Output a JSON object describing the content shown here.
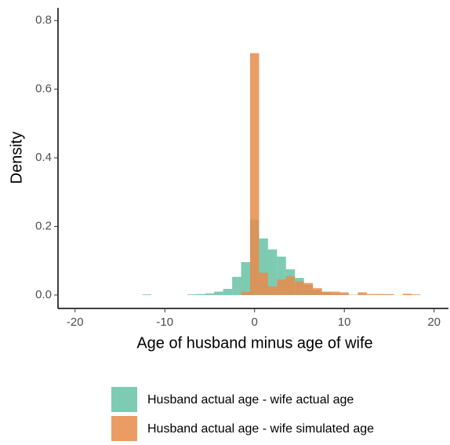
{
  "chart_data": {
    "type": "histogram",
    "xlabel": "Age of husband minus age of wife",
    "ylabel": "Density",
    "bins": [
      -12.5,
      -11.5,
      -10.5,
      -9.5,
      -8.5,
      -7.5,
      -6.5,
      -5.5,
      -4.5,
      -3.5,
      -2.5,
      -1.5,
      -0.5,
      0.5,
      1.5,
      2.5,
      3.5,
      4.5,
      5.5,
      6.5,
      7.5,
      8.5,
      9.5,
      10.5,
      11.5,
      12.5,
      13.5,
      14.5,
      15.5,
      16.5,
      17.5,
      18.5
    ],
    "series": [
      {
        "name": "Husband actual age - wife actual age",
        "color": "#66c2a5",
        "values": [
          0.002,
          0,
          0,
          0,
          0,
          0.002,
          0.003,
          0.005,
          0.01,
          0.018,
          0.053,
          0.096,
          0.22,
          0.165,
          0.133,
          0.112,
          0.075,
          0.05,
          0.03,
          0.015,
          0.008,
          0.004,
          0.002,
          0.001,
          0.001,
          0,
          0,
          0,
          0,
          0,
          0
        ]
      },
      {
        "name": "Husband actual age - wife simulated age",
        "color": "#e78b4a",
        "values": [
          0,
          0,
          0,
          0,
          0,
          0,
          0,
          0,
          0,
          0,
          0,
          0.01,
          0.705,
          0.065,
          0.025,
          0.045,
          0.055,
          0.04,
          0.035,
          0.02,
          0.01,
          0.01,
          0.008,
          0,
          0.008,
          0.003,
          0.003,
          0.003,
          0,
          0.004,
          0.002
        ]
      }
    ],
    "xlim": [
      -21.9,
      21.6
    ],
    "ylim": [
      -0.039,
      0.837
    ],
    "xticks": [
      -20,
      -10,
      0,
      10,
      20
    ],
    "yticks": [
      {
        "value": 0,
        "label": "0.0"
      },
      0.2,
      0.4,
      0.6,
      0.8
    ],
    "legend_position": "bottom"
  }
}
